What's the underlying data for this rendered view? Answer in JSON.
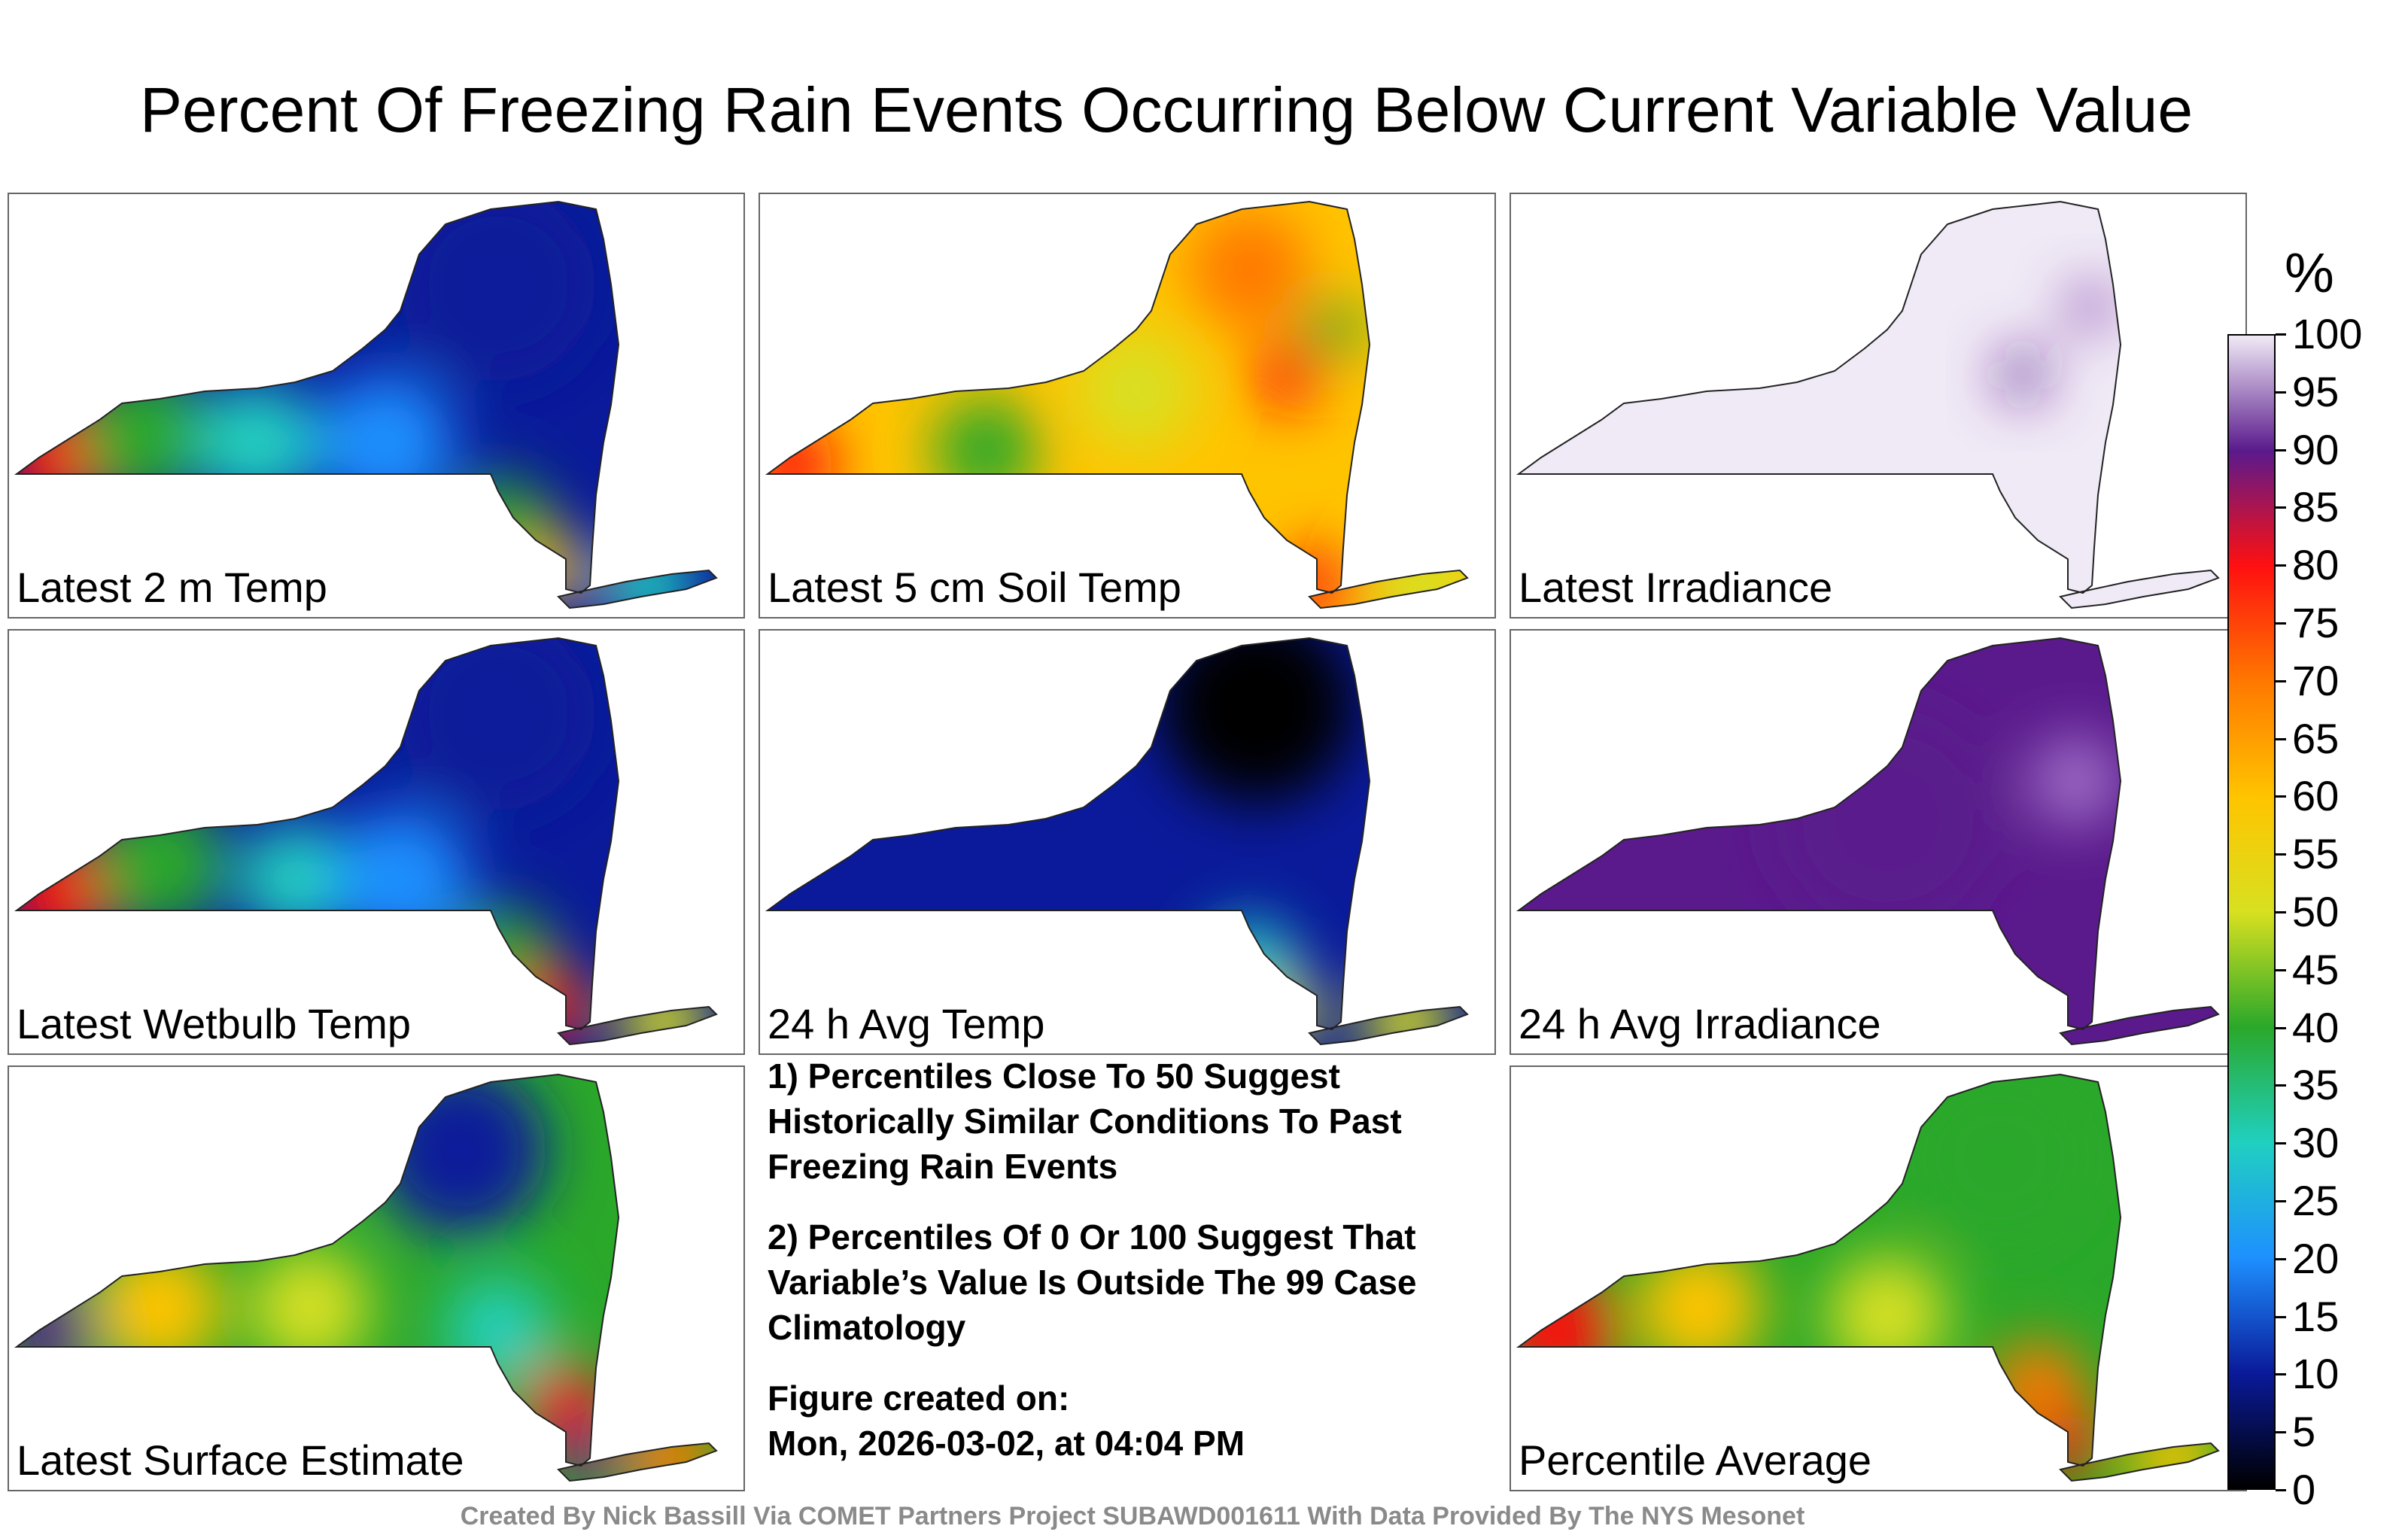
{
  "title": "Percent Of Freezing Rain Events Occurring Below Current Variable Value",
  "panels": [
    {
      "label": "Latest 2 m Temp",
      "scheme": "temp2m"
    },
    {
      "label": "Latest 5 cm Soil Temp",
      "scheme": "soil"
    },
    {
      "label": "Latest Irradiance",
      "scheme": "irr"
    },
    {
      "label": "Latest Wetbulb Temp",
      "scheme": "wetbulb"
    },
    {
      "label": "24 h Avg Temp",
      "scheme": "avgtemp"
    },
    {
      "label": "24 h Avg Irradiance",
      "scheme": "avgirr"
    },
    {
      "label": "Latest Surface Estimate",
      "scheme": "surface"
    },
    {
      "label": "Percentile Average",
      "scheme": "average"
    }
  ],
  "notes": {
    "note1": "1) Percentiles Close To 50 Suggest Historically Similar Conditions To Past Freezing Rain Events",
    "note2": "2) Percentiles Of 0 Or 100 Suggest That Variable’s Value Is Outside The 99 Case Climatology",
    "created_label": "Figure created on:",
    "created_date": "Mon, 2026-03-02, at 04:04 PM"
  },
  "colorbar": {
    "unit": "%",
    "ticks": [
      "100",
      "95",
      "90",
      "85",
      "80",
      "75",
      "70",
      "65",
      "60",
      "55",
      "50",
      "45",
      "40",
      "35",
      "30",
      "25",
      "20",
      "15",
      "10",
      "5",
      "0"
    ]
  },
  "credit": "Created By Nick Bassill Via COMET Partners Project SUBAWD001611 With Data Provided By The NYS Mesonet",
  "colors": {
    "c0": "#000000",
    "c10": "#0a1a9a",
    "c20": "#1e90ff",
    "c30": "#20d0c0",
    "c40": "#2aa82a",
    "c50": "#d8e020",
    "c60": "#ffc400",
    "c70": "#ff7800",
    "c80": "#ff1010",
    "c90": "#5a1a8c",
    "c100": "#f0eaf6"
  }
}
